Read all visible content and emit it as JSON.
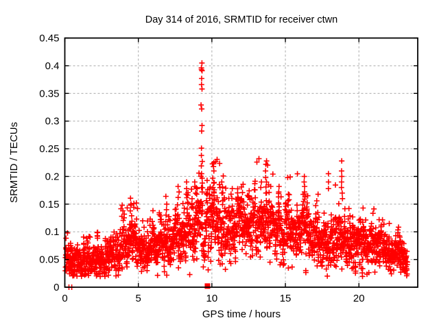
{
  "chart_data": {
    "type": "scatter",
    "title": "Day 314 of 2016, SRMTID for receiver ctwn",
    "xlabel": "GPS time / hours",
    "ylabel": "SRMTID / TECUs",
    "xlim": [
      0,
      24
    ],
    "ylim": [
      0,
      0.45
    ],
    "xticks": [
      [
        0,
        "0"
      ],
      [
        5,
        "5"
      ],
      [
        10,
        "10"
      ],
      [
        15,
        "15"
      ],
      [
        20,
        "20"
      ]
    ],
    "yticks": [
      [
        0,
        "0"
      ],
      [
        0.05,
        "0.05"
      ],
      [
        0.1,
        "0.1"
      ],
      [
        0.15,
        "0.15"
      ],
      [
        0.2,
        "0.2"
      ],
      [
        0.25,
        "0.25"
      ],
      [
        0.3,
        "0.3"
      ],
      [
        0.35,
        "0.35"
      ],
      [
        0.4,
        "0.4"
      ],
      [
        0.45,
        "0.45"
      ]
    ],
    "grid": {
      "show": true,
      "dash": "3 3"
    },
    "legend": "none",
    "colors": {
      "points": "#ff0000",
      "grid": "#b1b1b1",
      "axis": "#000000",
      "background": "#ffffff",
      "text": "#000000"
    },
    "marker": {
      "symbol": "plus",
      "size": 8,
      "stroke_width": 1.6
    },
    "flag_series": {
      "symbol": "filled-square",
      "size": 8,
      "color": "#ff0000",
      "points": [
        [
          9.7,
          0.002
        ]
      ]
    },
    "explicit_points": {
      "near_zero": [
        [
          0.28,
          0.0
        ],
        [
          0.47,
          0.0
        ]
      ],
      "low_outliers": [
        [
          17.85,
          0.02
        ],
        [
          22.85,
          0.027
        ],
        [
          23.05,
          0.032
        ],
        [
          13.95,
          0.045
        ]
      ],
      "spike_columns": [
        {
          "x": 9.3,
          "values": [
            0.405,
            0.396,
            0.393,
            0.391,
            0.377,
            0.366,
            0.358,
            0.329,
            0.322,
            0.292,
            0.282,
            0.251,
            0.238,
            0.227,
            0.219,
            0.205,
            0.197,
            0.188,
            0.18,
            0.172
          ]
        },
        {
          "x": 10.1,
          "values": [
            0.225,
            0.218,
            0.21,
            0.197,
            0.188,
            0.18,
            0.172,
            0.165
          ]
        },
        {
          "x": 10.7,
          "values": [
            0.19,
            0.181,
            0.17
          ]
        },
        {
          "x": 11.35,
          "values": [
            0.178,
            0.168
          ]
        },
        {
          "x": 12.05,
          "values": [
            0.181,
            0.171
          ]
        },
        {
          "x": 12.55,
          "values": [
            0.174,
            0.165
          ]
        },
        {
          "x": 13.35,
          "values": [
            0.19,
            0.18
          ]
        },
        {
          "x": 13.7,
          "values": [
            0.228,
            0.222,
            0.21,
            0.198,
            0.19,
            0.181,
            0.17
          ]
        },
        {
          "x": 14.55,
          "values": [
            0.182,
            0.172,
            0.163
          ]
        },
        {
          "x": 15.25,
          "values": [
            0.168,
            0.158
          ]
        },
        {
          "x": 16.3,
          "values": [
            0.2,
            0.19,
            0.182,
            0.172,
            0.163
          ]
        },
        {
          "x": 17.9,
          "values": [
            0.205,
            0.19,
            0.178
          ]
        },
        {
          "x": 18.85,
          "values": [
            0.228,
            0.21,
            0.2,
            0.19,
            0.18,
            0.17,
            0.16
          ]
        },
        {
          "x": 19.3,
          "values": [
            0.142
          ]
        },
        {
          "x": 20.3,
          "values": [
            0.143
          ]
        },
        {
          "x": 21.4,
          "values": [
            0.122
          ]
        },
        {
          "x": 22.1,
          "values": [
            0.115
          ]
        },
        {
          "x": 3.9,
          "values": [
            0.148,
            0.138,
            0.128
          ]
        },
        {
          "x": 4.9,
          "values": [
            0.152,
            0.142
          ]
        },
        {
          "x": 6.9,
          "values": [
            0.15,
            0.14
          ]
        },
        {
          "x": 7.75,
          "values": [
            0.182,
            0.172,
            0.162
          ]
        },
        {
          "x": 8.3,
          "values": [
            0.19,
            0.178,
            0.168
          ]
        },
        {
          "x": 8.85,
          "values": [
            0.19,
            0.182,
            0.17
          ]
        },
        {
          "x": 9.0,
          "values": [
            0.178,
            0.168
          ]
        }
      ]
    },
    "scatter_profile": {
      "seed": 1234567,
      "n_points": 2600,
      "t_start": 0.03,
      "t_end": 23.3,
      "ar": 0.5,
      "sd_base": 0.004,
      "sd_scale": 0.24,
      "tail_prob": 0.05,
      "tail_scale": 1.5,
      "floor": 0.018,
      "cap": 0.235,
      "cap_factor": 2.05,
      "mean_nodes": [
        [
          0,
          0.055
        ],
        [
          0.5,
          0.05
        ],
        [
          1,
          0.047
        ],
        [
          1.5,
          0.045
        ],
        [
          2,
          0.05
        ],
        [
          2.5,
          0.053
        ],
        [
          3,
          0.058
        ],
        [
          3.5,
          0.068
        ],
        [
          4,
          0.078
        ],
        [
          4.5,
          0.082
        ],
        [
          5,
          0.072
        ],
        [
          5.5,
          0.056
        ],
        [
          6,
          0.068
        ],
        [
          6.5,
          0.078
        ],
        [
          7,
          0.083
        ],
        [
          7.5,
          0.09
        ],
        [
          8,
          0.1
        ],
        [
          8.5,
          0.108
        ],
        [
          9,
          0.112
        ],
        [
          9.5,
          0.115
        ],
        [
          10,
          0.118
        ],
        [
          10.5,
          0.114
        ],
        [
          11,
          0.11
        ],
        [
          11.5,
          0.106
        ],
        [
          12,
          0.108
        ],
        [
          12.5,
          0.112
        ],
        [
          13,
          0.115
        ],
        [
          13.5,
          0.117
        ],
        [
          14,
          0.106
        ],
        [
          14.5,
          0.1
        ],
        [
          15,
          0.098
        ],
        [
          15.5,
          0.1
        ],
        [
          16,
          0.103
        ],
        [
          16.5,
          0.098
        ],
        [
          17,
          0.09
        ],
        [
          17.5,
          0.083
        ],
        [
          18,
          0.088
        ],
        [
          18.5,
          0.093
        ],
        [
          19,
          0.086
        ],
        [
          19.5,
          0.081
        ],
        [
          20,
          0.078
        ],
        [
          20.5,
          0.074
        ],
        [
          21,
          0.071
        ],
        [
          21.5,
          0.068
        ],
        [
          22,
          0.064
        ],
        [
          22.5,
          0.06
        ],
        [
          23,
          0.055
        ],
        [
          23.3,
          0.05
        ]
      ]
    }
  }
}
